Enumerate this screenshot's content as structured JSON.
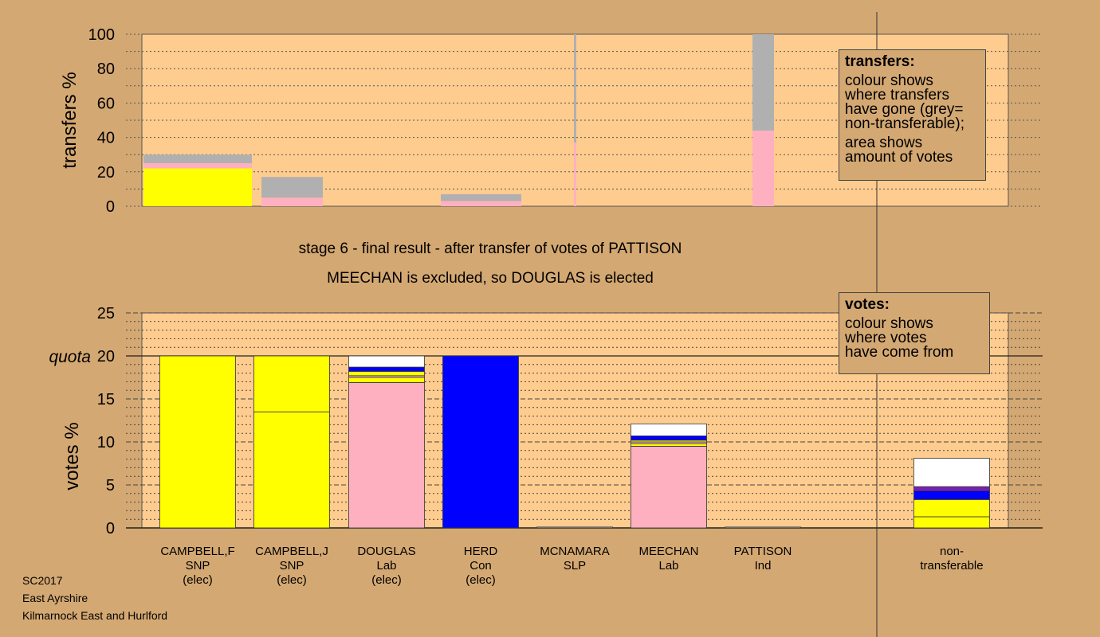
{
  "chart_data": [
    {
      "type": "bar",
      "stacked": true,
      "ylabel": "transfers %",
      "ylim": [
        0,
        100
      ],
      "yticks": [
        0,
        20,
        40,
        60,
        80,
        100
      ],
      "transfers": [
        {
          "from": "CAMPBELL,F",
          "segments": [
            {
              "colour": "#ffff00",
              "value": 22
            },
            {
              "colour": "#ffb0c0",
              "value": 3
            },
            {
              "colour": "#b0b0b0",
              "value": 5
            }
          ]
        },
        {
          "from": "CAMPBELL,J",
          "segments": [
            {
              "colour": "#ffb0c0",
              "value": 5
            },
            {
              "colour": "#b0b0b0",
              "value": 12
            }
          ]
        },
        {
          "from": "HERD",
          "segments": [
            {
              "colour": "#ffb0c0",
              "value": 3
            },
            {
              "colour": "#b0b0b0",
              "value": 4
            }
          ]
        },
        {
          "from": "MCNAMARA",
          "segments": [
            {
              "colour": "#ffb0c0",
              "value": 37
            },
            {
              "colour": "#b0b0b0",
              "value": 63
            }
          ]
        },
        {
          "from": "PATTISON",
          "segments": [
            {
              "colour": "#ffb0c0",
              "value": 44
            },
            {
              "colour": "#b0b0b0",
              "value": 56
            }
          ]
        }
      ]
    },
    {
      "type": "bar",
      "stacked": true,
      "ylabel": "votes %",
      "ylim": [
        0,
        25
      ],
      "yticks": [
        0,
        5,
        10,
        15,
        20,
        25
      ],
      "quota": 20,
      "quota_label": "quota",
      "candidates": [
        {
          "name": "CAMPBELL,F",
          "party": "SNP",
          "status": "(elec)",
          "segments": [
            {
              "colour": "#ffff00",
              "value": 20
            }
          ]
        },
        {
          "name": "CAMPBELL,J",
          "party": "SNP",
          "status": "(elec)",
          "segments": [
            {
              "colour": "#ffff00",
              "value": 13.5
            },
            {
              "colour": "#ffff00",
              "value": 6.5
            }
          ]
        },
        {
          "name": "DOUGLAS",
          "party": "Lab",
          "status": "(elec)",
          "segments": [
            {
              "colour": "#ffb0c0",
              "value": 16.9
            },
            {
              "colour": "#ffff00",
              "value": 0.6
            },
            {
              "colour": "#ffb0c0",
              "value": 0.2
            },
            {
              "colour": "#ffff00",
              "value": 0.5
            },
            {
              "colour": "#0000ff",
              "value": 0.5
            },
            {
              "colour": "#ffffff",
              "value": 1.3
            }
          ]
        },
        {
          "name": "HERD",
          "party": "Con",
          "status": "(elec)",
          "segments": [
            {
              "colour": "#0000ff",
              "value": 20
            }
          ]
        },
        {
          "name": "MCNAMARA",
          "party": "SLP",
          "status": "",
          "segments": [
            {
              "colour": "#ffffff",
              "value": 0.1
            }
          ]
        },
        {
          "name": "MEECHAN",
          "party": "Lab",
          "status": "",
          "segments": [
            {
              "colour": "#ffb0c0",
              "value": 9.5
            },
            {
              "colour": "#ffff00",
              "value": 0.3
            },
            {
              "colour": "#ffb0c0",
              "value": 0.2
            },
            {
              "colour": "#ffff00",
              "value": 0.2
            },
            {
              "colour": "#0000ff",
              "value": 0.5
            },
            {
              "colour": "#ffffff",
              "value": 1.4
            }
          ]
        },
        {
          "name": "PATTISON",
          "party": "Ind",
          "status": "",
          "segments": [
            {
              "colour": "#ffffff",
              "value": 0.1
            }
          ]
        }
      ],
      "nontransferable": {
        "label_line1": "non-",
        "label_line2": "transferable",
        "segments": [
          {
            "colour": "#ffff00",
            "value": 1.3
          },
          {
            "colour": "#ffff00",
            "value": 2.0
          },
          {
            "colour": "#0000ff",
            "value": 1.0
          },
          {
            "colour": "#7a1fb0",
            "value": 0.5
          },
          {
            "colour": "#ffffff",
            "value": 3.3
          }
        ]
      }
    }
  ],
  "stage_title": "stage 6 - final result - after transfer of votes of PATTISON",
  "stage_subtitle": "MEECHAN is excluded, so DOUGLAS is elected",
  "legend_transfers": {
    "heading": "transfers:",
    "line1": "colour shows",
    "line2": "where transfers",
    "line3": "have gone (grey=",
    "line4": "non-transferable);",
    "line5": "area shows",
    "line6": "amount of votes"
  },
  "legend_votes": {
    "heading": "votes:",
    "line1": "colour shows",
    "line2": "where votes",
    "line3": "have come from"
  },
  "footer": {
    "line1": "SC2017",
    "line2": "East Ayrshire",
    "line3": "Kilmarnock East and Hurlford"
  }
}
